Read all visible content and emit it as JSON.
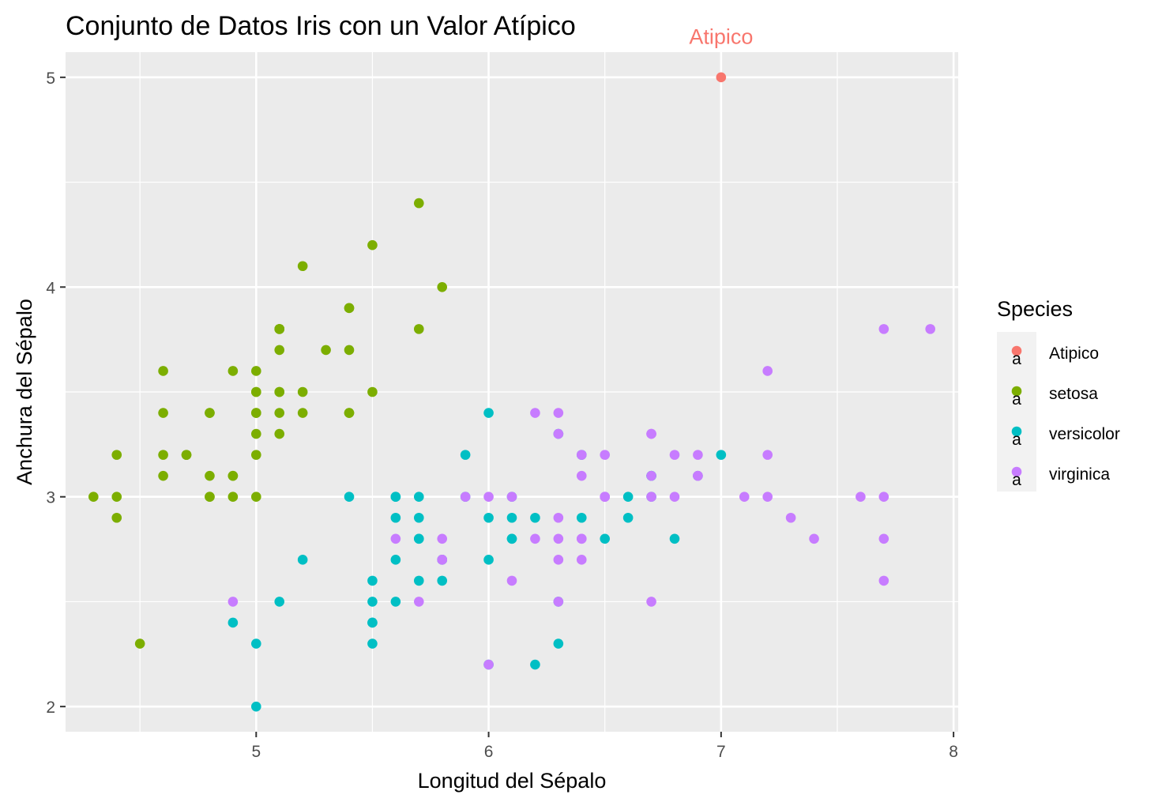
{
  "chart_data": {
    "type": "scatter",
    "title": "Conjunto de Datos Iris con un Valor Atípico",
    "xlabel": "Longitud del Sépalo",
    "ylabel": "Anchura del Sépalo",
    "xlim": [
      4.18,
      8.02
    ],
    "ylim": [
      1.88,
      5.12
    ],
    "x_ticks": [
      5,
      6,
      7,
      8
    ],
    "y_ticks": [
      2,
      3,
      4,
      5
    ],
    "grid": true,
    "legend": {
      "title": "Species",
      "position": "right"
    },
    "annotations": [
      {
        "text": "Atipico",
        "x": 7.0,
        "y": 5.13,
        "color": "#F8766D"
      }
    ],
    "series": [
      {
        "name": "Atipico",
        "color": "#F8766D",
        "x": [
          7.0
        ],
        "y": [
          5.0
        ]
      },
      {
        "name": "setosa",
        "color": "#7CAE00",
        "x": [
          5.1,
          4.9,
          4.7,
          4.6,
          5.0,
          5.4,
          4.6,
          5.0,
          4.4,
          4.9,
          5.4,
          4.8,
          4.8,
          4.3,
          5.8,
          5.7,
          5.4,
          5.1,
          5.7,
          5.1,
          5.4,
          5.1,
          4.6,
          5.1,
          4.8,
          5.0,
          5.0,
          5.2,
          5.2,
          4.7,
          4.8,
          5.4,
          5.2,
          5.5,
          4.9,
          5.0,
          5.5,
          4.9,
          4.4,
          5.1,
          5.0,
          4.5,
          4.4,
          5.0,
          5.1,
          4.8,
          5.1,
          4.6,
          5.3,
          5.0
        ],
        "y": [
          3.5,
          3.0,
          3.2,
          3.1,
          3.6,
          3.9,
          3.4,
          3.4,
          2.9,
          3.1,
          3.7,
          3.4,
          3.0,
          3.0,
          4.0,
          4.4,
          3.9,
          3.5,
          3.8,
          3.8,
          3.4,
          3.7,
          3.6,
          3.3,
          3.4,
          3.0,
          3.4,
          3.5,
          3.4,
          3.2,
          3.1,
          3.4,
          4.1,
          4.2,
          3.1,
          3.2,
          3.5,
          3.6,
          3.0,
          3.4,
          3.5,
          2.3,
          3.2,
          3.5,
          3.8,
          3.0,
          3.8,
          3.2,
          3.7,
          3.3
        ]
      },
      {
        "name": "versicolor",
        "color": "#00BFC4",
        "x": [
          7.0,
          6.4,
          6.9,
          5.5,
          6.5,
          5.7,
          6.3,
          4.9,
          6.6,
          5.2,
          5.0,
          5.9,
          6.0,
          6.1,
          5.6,
          6.7,
          5.6,
          5.8,
          6.2,
          5.6,
          5.9,
          6.1,
          6.3,
          6.1,
          6.4,
          6.6,
          6.8,
          6.7,
          6.0,
          5.7,
          5.5,
          5.5,
          5.8,
          6.0,
          5.4,
          6.0,
          6.7,
          6.3,
          5.6,
          5.5,
          5.5,
          6.1,
          5.8,
          5.0,
          5.6,
          5.7,
          5.7,
          6.2,
          5.1,
          5.7
        ],
        "y": [
          3.2,
          3.2,
          3.1,
          2.3,
          2.8,
          2.8,
          3.3,
          2.4,
          2.9,
          2.7,
          2.0,
          3.0,
          2.2,
          2.9,
          2.9,
          3.1,
          3.0,
          2.7,
          2.2,
          2.5,
          3.2,
          2.8,
          2.5,
          2.8,
          2.9,
          3.0,
          2.8,
          3.0,
          2.9,
          2.6,
          2.4,
          2.4,
          2.7,
          2.7,
          3.0,
          3.4,
          3.1,
          2.3,
          3.0,
          2.5,
          2.6,
          3.0,
          2.6,
          2.3,
          2.7,
          3.0,
          2.9,
          2.9,
          2.5,
          2.8
        ]
      },
      {
        "name": "virginica",
        "color": "#C77CFF",
        "x": [
          6.3,
          5.8,
          7.1,
          6.3,
          6.5,
          7.6,
          4.9,
          7.3,
          6.7,
          7.2,
          6.5,
          6.4,
          6.8,
          5.7,
          5.8,
          6.4,
          6.5,
          7.7,
          7.7,
          6.0,
          6.9,
          5.6,
          7.7,
          6.3,
          6.7,
          7.2,
          6.2,
          6.1,
          6.4,
          7.2,
          7.4,
          7.9,
          6.4,
          6.3,
          6.1,
          7.7,
          6.3,
          6.4,
          6.0,
          6.9,
          6.7,
          6.9,
          5.8,
          6.8,
          6.7,
          6.7,
          6.3,
          6.5,
          6.2,
          5.9
        ],
        "y": [
          3.3,
          2.7,
          3.0,
          2.9,
          3.0,
          3.0,
          2.5,
          2.9,
          2.5,
          3.6,
          3.2,
          2.7,
          3.0,
          2.5,
          2.8,
          3.2,
          3.0,
          3.8,
          2.6,
          2.2,
          3.2,
          2.8,
          2.8,
          2.7,
          3.3,
          3.2,
          2.8,
          3.0,
          2.8,
          3.0,
          2.8,
          3.8,
          2.8,
          2.8,
          2.6,
          3.0,
          3.4,
          3.1,
          3.0,
          3.1,
          3.1,
          3.1,
          2.7,
          3.2,
          3.3,
          3.0,
          2.5,
          3.0,
          3.4,
          3.0
        ]
      }
    ]
  }
}
